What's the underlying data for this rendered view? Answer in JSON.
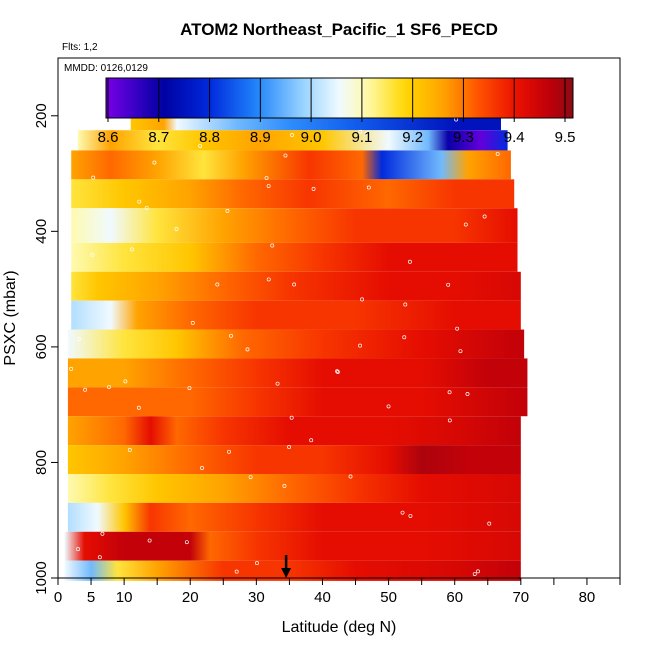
{
  "chart_data": {
    "type": "heatmap",
    "title": "ATOM2 Northeast_Pacific_1 SF6_PECD",
    "flights_label": "Flts: 1,2",
    "dates_label": "MMDD: 0126,0129",
    "xlabel": "Latitude (deg N)",
    "ylabel": "PSXC (mbar)",
    "xlim": [
      0,
      85
    ],
    "ylim": [
      1000,
      100
    ],
    "x_ticks": [
      0,
      5,
      10,
      20,
      30,
      40,
      50,
      60,
      70,
      80
    ],
    "y_ticks": [
      200,
      400,
      600,
      800,
      1000
    ],
    "colorbar": {
      "range": [
        8.6,
        9.5
      ],
      "ticks": [
        "8.6",
        "8.7",
        "8.8",
        "8.9",
        "9.0",
        "9.1",
        "9.2",
        "9.3",
        "9.4",
        "9.5"
      ]
    },
    "marker_latitude": 34.5,
    "bands": [
      {
        "p_top": 180,
        "p_bot": 225,
        "x_start": 11,
        "x_end": 67,
        "stops": [
          [
            11,
            9.2
          ],
          [
            16,
            9.25
          ],
          [
            18,
            9.05
          ],
          [
            27,
            8.95
          ],
          [
            35,
            8.9
          ],
          [
            45,
            8.85
          ],
          [
            60,
            8.75
          ],
          [
            67,
            8.75
          ]
        ]
      },
      {
        "p_top": 225,
        "p_bot": 260,
        "x_start": 3,
        "x_end": 68,
        "stops": [
          [
            3,
            9.1
          ],
          [
            8,
            9.25
          ],
          [
            15,
            9.15
          ],
          [
            22,
            9.2
          ],
          [
            30,
            9.25
          ],
          [
            40,
            9.2
          ],
          [
            50,
            9.05
          ],
          [
            56,
            8.95
          ],
          [
            59,
            8.7
          ],
          [
            64,
            8.62
          ],
          [
            68,
            8.8
          ]
        ]
      },
      {
        "p_top": 260,
        "p_bot": 310,
        "x_start": 2,
        "x_end": 68.5,
        "stops": [
          [
            2,
            9.25
          ],
          [
            8,
            9.3
          ],
          [
            15,
            9.25
          ],
          [
            22,
            9.15
          ],
          [
            28,
            9.25
          ],
          [
            38,
            9.35
          ],
          [
            46,
            9.3
          ],
          [
            49,
            8.8
          ],
          [
            58,
            8.95
          ],
          [
            62,
            9.25
          ],
          [
            68.5,
            9.3
          ]
        ]
      },
      {
        "p_top": 310,
        "p_bot": 360,
        "x_start": 2,
        "x_end": 69,
        "stops": [
          [
            2,
            9.15
          ],
          [
            10,
            9.2
          ],
          [
            20,
            9.25
          ],
          [
            28,
            9.3
          ],
          [
            38,
            9.35
          ],
          [
            50,
            9.3
          ],
          [
            60,
            9.35
          ],
          [
            69,
            9.35
          ]
        ]
      },
      {
        "p_top": 360,
        "p_bot": 420,
        "x_start": 2,
        "x_end": 69.5,
        "stops": [
          [
            2,
            9.1
          ],
          [
            8,
            9.05
          ],
          [
            15,
            9.15
          ],
          [
            25,
            9.25
          ],
          [
            35,
            9.3
          ],
          [
            45,
            9.35
          ],
          [
            60,
            9.35
          ],
          [
            69.5,
            9.4
          ]
        ]
      },
      {
        "p_top": 420,
        "p_bot": 470,
        "x_start": 2,
        "x_end": 69.5,
        "stops": [
          [
            2,
            9.1
          ],
          [
            10,
            9.15
          ],
          [
            20,
            9.2
          ],
          [
            30,
            9.3
          ],
          [
            40,
            9.35
          ],
          [
            50,
            9.4
          ],
          [
            60,
            9.4
          ],
          [
            69.5,
            9.4
          ]
        ]
      },
      {
        "p_top": 470,
        "p_bot": 520,
        "x_start": 2,
        "x_end": 70,
        "stops": [
          [
            2,
            9.15
          ],
          [
            6,
            9.2
          ],
          [
            15,
            9.25
          ],
          [
            25,
            9.3
          ],
          [
            35,
            9.35
          ],
          [
            50,
            9.4
          ],
          [
            60,
            9.4
          ],
          [
            70,
            9.42
          ]
        ]
      },
      {
        "p_top": 520,
        "p_bot": 570,
        "x_start": 2,
        "x_end": 70,
        "stops": [
          [
            2,
            9.0
          ],
          [
            8,
            9.05
          ],
          [
            12,
            9.25
          ],
          [
            20,
            9.3
          ],
          [
            30,
            9.35
          ],
          [
            45,
            9.35
          ],
          [
            60,
            9.4
          ],
          [
            70,
            9.4
          ]
        ]
      },
      {
        "p_top": 570,
        "p_bot": 620,
        "x_start": 1.5,
        "x_end": 70.5,
        "stops": [
          [
            1.5,
            9.05
          ],
          [
            10,
            9.15
          ],
          [
            18,
            9.2
          ],
          [
            28,
            9.3
          ],
          [
            40,
            9.35
          ],
          [
            55,
            9.4
          ],
          [
            70.5,
            9.45
          ]
        ]
      },
      {
        "p_top": 620,
        "p_bot": 670,
        "x_start": 1.5,
        "x_end": 71,
        "stops": [
          [
            1.5,
            9.25
          ],
          [
            10,
            9.25
          ],
          [
            20,
            9.3
          ],
          [
            30,
            9.35
          ],
          [
            40,
            9.4
          ],
          [
            55,
            9.4
          ],
          [
            65,
            9.45
          ],
          [
            71,
            9.45
          ]
        ]
      },
      {
        "p_top": 670,
        "p_bot": 720,
        "x_start": 1.5,
        "x_end": 71,
        "stops": [
          [
            1.5,
            9.3
          ],
          [
            10,
            9.3
          ],
          [
            20,
            9.3
          ],
          [
            30,
            9.35
          ],
          [
            40,
            9.4
          ],
          [
            55,
            9.4
          ],
          [
            71,
            9.45
          ]
        ]
      },
      {
        "p_top": 720,
        "p_bot": 770,
        "x_start": 1.5,
        "x_end": 70,
        "stops": [
          [
            1.5,
            9.25
          ],
          [
            10,
            9.3
          ],
          [
            14,
            9.4
          ],
          [
            18,
            9.3
          ],
          [
            25,
            9.35
          ],
          [
            35,
            9.4
          ],
          [
            50,
            9.4
          ],
          [
            60,
            9.42
          ],
          [
            70,
            9.45
          ]
        ]
      },
      {
        "p_top": 770,
        "p_bot": 820,
        "x_start": 1.5,
        "x_end": 70,
        "stops": [
          [
            1.5,
            9.2
          ],
          [
            10,
            9.25
          ],
          [
            20,
            9.3
          ],
          [
            30,
            9.35
          ],
          [
            40,
            9.35
          ],
          [
            50,
            9.4
          ],
          [
            55,
            9.47
          ],
          [
            62,
            9.45
          ],
          [
            70,
            9.45
          ]
        ]
      },
      {
        "p_top": 820,
        "p_bot": 870,
        "x_start": 1.5,
        "x_end": 70,
        "stops": [
          [
            1.5,
            9.1
          ],
          [
            8,
            9.15
          ],
          [
            15,
            9.2
          ],
          [
            25,
            9.25
          ],
          [
            35,
            9.3
          ],
          [
            45,
            9.35
          ],
          [
            55,
            9.4
          ],
          [
            70,
            9.42
          ]
        ]
      },
      {
        "p_top": 870,
        "p_bot": 920,
        "x_start": 1.5,
        "x_end": 70,
        "stops": [
          [
            1.5,
            9.0
          ],
          [
            6,
            9.05
          ],
          [
            10,
            9.2
          ],
          [
            14,
            9.35
          ],
          [
            20,
            9.3
          ],
          [
            30,
            9.35
          ],
          [
            40,
            9.4
          ],
          [
            55,
            9.4
          ],
          [
            70,
            9.42
          ]
        ]
      },
      {
        "p_top": 920,
        "p_bot": 970,
        "x_start": 1,
        "x_end": 70,
        "stops": [
          [
            1,
            9.05
          ],
          [
            4,
            9.4
          ],
          [
            10,
            9.45
          ],
          [
            20,
            9.45
          ],
          [
            23,
            9.3
          ],
          [
            30,
            9.35
          ],
          [
            40,
            9.4
          ],
          [
            55,
            9.4
          ],
          [
            70,
            9.42
          ]
        ]
      },
      {
        "p_top": 970,
        "p_bot": 1005,
        "x_start": 1,
        "x_end": 70,
        "stops": [
          [
            1,
            9.05
          ],
          [
            5,
            8.95
          ],
          [
            9,
            9.15
          ],
          [
            15,
            9.25
          ],
          [
            25,
            9.35
          ],
          [
            35,
            9.35
          ],
          [
            45,
            9.4
          ],
          [
            60,
            9.42
          ],
          [
            70,
            9.45
          ]
        ]
      }
    ]
  }
}
